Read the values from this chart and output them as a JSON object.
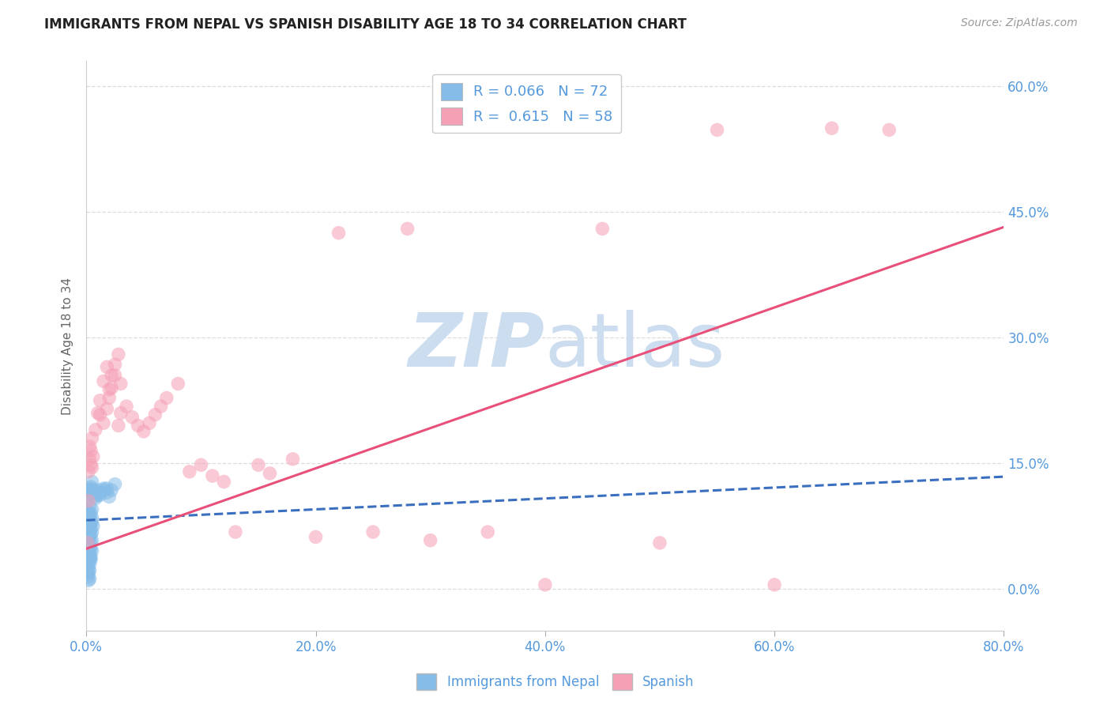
{
  "title": "IMMIGRANTS FROM NEPAL VS SPANISH DISABILITY AGE 18 TO 34 CORRELATION CHART",
  "source": "Source: ZipAtlas.com",
  "xlabel_label": "Immigrants from Nepal",
  "ylabel_label": "Disability Age 18 to 34",
  "xlim": [
    0.0,
    0.8
  ],
  "ylim": [
    -0.05,
    0.63
  ],
  "x_tick_vals": [
    0.0,
    0.2,
    0.4,
    0.6,
    0.8
  ],
  "x_tick_labels": [
    "0.0%",
    "20.0%",
    "40.0%",
    "60.0%",
    "80.0%"
  ],
  "y_tick_vals": [
    0.0,
    0.15,
    0.3,
    0.45,
    0.6
  ],
  "y_tick_labels": [
    "0.0%",
    "15.0%",
    "30.0%",
    "45.0%",
    "60.0%"
  ],
  "blue_R": "0.066",
  "blue_N": "72",
  "pink_R": "0.615",
  "pink_N": "58",
  "blue_color": "#85bce8",
  "pink_color": "#f5a0b5",
  "blue_line_color": "#3a6fbf",
  "pink_line_color": "#e8507a",
  "watermark_zip": "ZIP",
  "watermark_atlas": "atlas",
  "watermark_color": "#ccddef",
  "background_color": "#ffffff",
  "grid_color": "#dddddd",
  "tick_color": "#5599dd",
  "ylabel_color": "#666666",
  "title_color": "#222222",
  "source_color": "#999999",
  "blue_scatter_x": [
    0.001,
    0.001,
    0.001,
    0.001,
    0.002,
    0.002,
    0.002,
    0.002,
    0.002,
    0.002,
    0.002,
    0.002,
    0.003,
    0.003,
    0.003,
    0.003,
    0.003,
    0.003,
    0.003,
    0.003,
    0.004,
    0.004,
    0.004,
    0.004,
    0.004,
    0.005,
    0.005,
    0.005,
    0.005,
    0.006,
    0.001,
    0.001,
    0.002,
    0.002,
    0.002,
    0.002,
    0.003,
    0.003,
    0.003,
    0.004,
    0.001,
    0.001,
    0.002,
    0.002,
    0.003,
    0.003,
    0.004,
    0.004,
    0.005,
    0.005,
    0.001,
    0.001,
    0.002,
    0.002,
    0.003,
    0.004,
    0.005,
    0.006,
    0.007,
    0.008,
    0.01,
    0.012,
    0.015,
    0.018,
    0.02,
    0.022,
    0.025,
    0.008,
    0.01,
    0.012,
    0.015,
    0.018
  ],
  "blue_scatter_y": [
    0.055,
    0.065,
    0.045,
    0.075,
    0.06,
    0.068,
    0.078,
    0.052,
    0.088,
    0.045,
    0.058,
    0.04,
    0.07,
    0.08,
    0.062,
    0.05,
    0.042,
    0.035,
    0.048,
    0.038,
    0.072,
    0.055,
    0.048,
    0.065,
    0.038,
    0.08,
    0.068,
    0.058,
    0.045,
    0.075,
    0.028,
    0.018,
    0.025,
    0.02,
    0.015,
    0.01,
    0.022,
    0.03,
    0.012,
    0.035,
    0.095,
    0.088,
    0.092,
    0.082,
    0.098,
    0.085,
    0.09,
    0.078,
    0.095,
    0.085,
    0.108,
    0.115,
    0.112,
    0.118,
    0.12,
    0.122,
    0.128,
    0.118,
    0.11,
    0.115,
    0.118,
    0.112,
    0.12,
    0.115,
    0.11,
    0.118,
    0.125,
    0.108,
    0.112,
    0.115,
    0.118,
    0.12
  ],
  "pink_scatter_x": [
    0.001,
    0.002,
    0.002,
    0.003,
    0.003,
    0.004,
    0.004,
    0.005,
    0.005,
    0.006,
    0.008,
    0.01,
    0.012,
    0.015,
    0.018,
    0.02,
    0.022,
    0.025,
    0.028,
    0.03,
    0.012,
    0.015,
    0.018,
    0.02,
    0.022,
    0.025,
    0.028,
    0.03,
    0.035,
    0.04,
    0.045,
    0.05,
    0.055,
    0.06,
    0.065,
    0.07,
    0.08,
    0.09,
    0.1,
    0.11,
    0.12,
    0.13,
    0.15,
    0.16,
    0.18,
    0.2,
    0.22,
    0.25,
    0.28,
    0.3,
    0.35,
    0.4,
    0.45,
    0.5,
    0.55,
    0.6,
    0.65,
    0.7
  ],
  "pink_scatter_y": [
    0.055,
    0.105,
    0.14,
    0.155,
    0.17,
    0.148,
    0.165,
    0.18,
    0.145,
    0.158,
    0.19,
    0.21,
    0.225,
    0.248,
    0.265,
    0.238,
    0.255,
    0.268,
    0.28,
    0.245,
    0.208,
    0.198,
    0.215,
    0.228,
    0.24,
    0.255,
    0.195,
    0.21,
    0.218,
    0.205,
    0.195,
    0.188,
    0.198,
    0.208,
    0.218,
    0.228,
    0.245,
    0.14,
    0.148,
    0.135,
    0.128,
    0.068,
    0.148,
    0.138,
    0.155,
    0.062,
    0.425,
    0.068,
    0.43,
    0.058,
    0.068,
    0.005,
    0.43,
    0.055,
    0.548,
    0.005,
    0.55,
    0.548
  ]
}
